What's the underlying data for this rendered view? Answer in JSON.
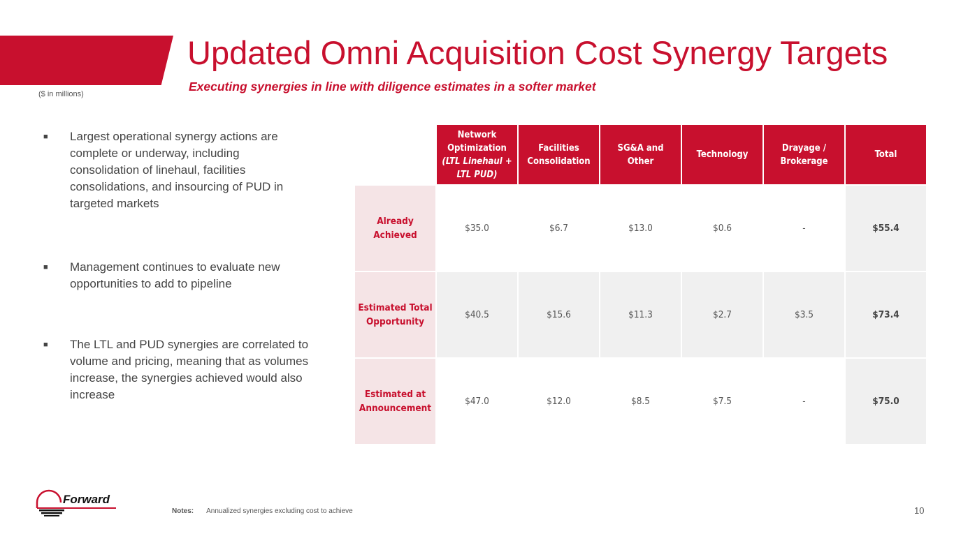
{
  "header": {
    "title": "Updated Omni Acquisition Cost Synergy Targets",
    "subtitle": "Executing synergies in line with diligence estimates in a softer market",
    "units": "($ in millions)"
  },
  "bullets": [
    "Largest operational synergy actions are complete or underway, including consolidation of linehaul, facilities consolidations, and insourcing of PUD in targeted markets",
    "Management continues to evaluate new opportunities to add to pipeline",
    "The LTL and PUD synergies are correlated to volume and pricing, meaning that as volumes increase, the synergies achieved would also increase"
  ],
  "table": {
    "columns": [
      {
        "label": "Network Optimization",
        "sub": "(LTL Linehaul + LTL PUD)"
      },
      {
        "label": "Facilities Consolidation"
      },
      {
        "label": "SG&A and Other"
      },
      {
        "label": "Technology"
      },
      {
        "label": "Drayage / Brokerage"
      },
      {
        "label": "Total"
      }
    ],
    "rows": [
      {
        "label": "Already Achieved",
        "values": [
          "$35.0",
          "$6.7",
          "$13.0",
          "$0.6",
          "-",
          "$55.4"
        ]
      },
      {
        "label": "Estimated Total Opportunity",
        "values": [
          "$40.5",
          "$15.6",
          "$11.3",
          "$2.7",
          "$3.5",
          "$73.4"
        ]
      },
      {
        "label": "Estimated at Announcement",
        "values": [
          "$47.0",
          "$12.0",
          "$8.5",
          "$7.5",
          "-",
          "$75.0"
        ]
      }
    ]
  },
  "footer": {
    "logo_text": "Forward",
    "notes_label": "Notes:",
    "notes_text": "Annualized synergies excluding cost to achieve",
    "page_number": "10"
  },
  "colors": {
    "brand": "#C8102E"
  }
}
